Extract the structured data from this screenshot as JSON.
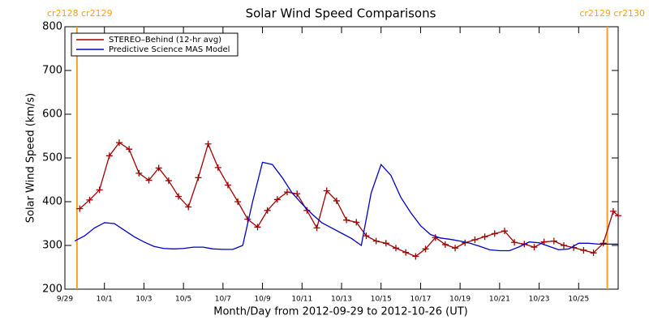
{
  "chart_data": {
    "type": "line",
    "title": "Solar Wind Speed Comparisons",
    "xlabel": "Month/Day from 2012-09-29 to 2012-10-26 (UT)",
    "ylabel": "Solar Wind Speed (km/s)",
    "xlim": [
      0,
      28
    ],
    "ylim": [
      200,
      800
    ],
    "yticks": [
      200,
      300,
      400,
      500,
      600,
      700,
      800
    ],
    "xticks": [
      {
        "value": 0,
        "label": "9/29"
      },
      {
        "value": 2,
        "label": "10/1"
      },
      {
        "value": 4,
        "label": "10/3"
      },
      {
        "value": 6,
        "label": "10/5"
      },
      {
        "value": 8,
        "label": "10/7"
      },
      {
        "value": 10,
        "label": "10/9"
      },
      {
        "value": 12,
        "label": "10/11"
      },
      {
        "value": 14,
        "label": "10/13"
      },
      {
        "value": 16,
        "label": "10/15"
      },
      {
        "value": 18,
        "label": "10/17"
      },
      {
        "value": 20,
        "label": "10/19"
      },
      {
        "value": 22,
        "label": "10/21"
      },
      {
        "value": 24,
        "label": "10/23"
      },
      {
        "value": 26,
        "label": "10/25"
      }
    ],
    "legend": "upper left",
    "vlines": {
      "color": "#f5a020",
      "values": [
        0.61,
        27.45
      ]
    },
    "annotations": [
      "cr2128 cr2129",
      "cr2129 cr2130"
    ],
    "series": [
      {
        "name": "STEREO–Behind (12-hr avg)",
        "color": "#a00000",
        "marker": "plus",
        "x": [
          0.75,
          1.25,
          1.75,
          2.25,
          2.75,
          3.25,
          3.75,
          4.25,
          4.75,
          5.25,
          5.75,
          6.25,
          6.75,
          7.25,
          7.75,
          8.25,
          8.75,
          9.25,
          9.75,
          10.25,
          10.75,
          11.25,
          11.75,
          12.25,
          12.75,
          13.25,
          13.75,
          14.25,
          14.75,
          15.25,
          15.75,
          16.25,
          16.75,
          17.25,
          17.75,
          18.25,
          18.75,
          19.25,
          19.75,
          20.25,
          20.75,
          21.25,
          21.75,
          22.25,
          22.75,
          23.25,
          23.75,
          24.25,
          24.75,
          25.25,
          25.75,
          26.25,
          26.75,
          27.25,
          27.75,
          28
        ],
        "values": [
          384,
          404,
          427,
          505,
          535,
          520,
          465,
          449,
          477,
          448,
          412,
          388,
          455,
          532,
          478,
          438,
          400,
          360,
          342,
          380,
          405,
          422,
          418,
          380,
          340,
          425,
          402,
          358,
          353,
          322,
          310,
          305,
          294,
          284,
          275,
          292,
          318,
          302,
          294,
          306,
          313,
          320,
          327,
          333,
          307,
          303,
          296,
          308,
          310,
          300,
          295,
          289,
          283,
          305,
          378,
          368
        ]
      },
      {
        "name": "Predictive Science MAS Model",
        "color": "#0000c8",
        "marker": "none",
        "x": [
          0.5,
          1,
          1.5,
          2,
          2.5,
          3,
          3.5,
          4,
          4.5,
          5,
          5.5,
          6,
          6.5,
          7,
          7.5,
          8,
          8.5,
          9,
          9.5,
          10,
          10.5,
          11,
          11.5,
          12,
          12.5,
          13,
          13.5,
          14,
          14.5,
          15,
          15.5,
          16,
          16.5,
          17,
          17.5,
          18,
          18.5,
          19,
          19.5,
          20,
          20.5,
          21,
          21.5,
          22,
          22.5,
          23,
          23.5,
          24,
          24.5,
          25,
          25.5,
          26,
          26.5,
          27,
          27.5,
          28
        ],
        "values": [
          310,
          322,
          340,
          352,
          350,
          335,
          320,
          308,
          298,
          293,
          292,
          293,
          296,
          296,
          292,
          291,
          291,
          300,
          400,
          490,
          485,
          455,
          420,
          395,
          372,
          352,
          340,
          328,
          316,
          300,
          420,
          485,
          460,
          410,
          375,
          345,
          325,
          317,
          314,
          310,
          305,
          298,
          290,
          288,
          288,
          297,
          308,
          306,
          298,
          290,
          292,
          305,
          305,
          303,
          303,
          303
        ]
      }
    ]
  }
}
